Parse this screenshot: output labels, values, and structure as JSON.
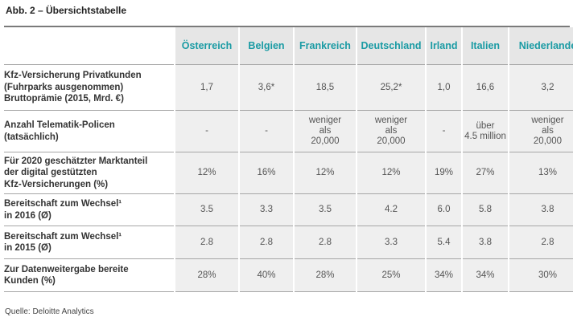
{
  "title": "Abb. 2 – Übersichtstabelle",
  "columns": [
    "Österreich",
    "Belgien",
    "Frankreich",
    "Deutschland",
    "Irland",
    "Italien",
    "Niederlande"
  ],
  "rows": [
    {
      "label": [
        "Kfz-Versicherung Privatkunden",
        "(Fuhrparks ausgenommen)",
        "Bruttoprämie (2015, Mrd. €)"
      ],
      "values": [
        [
          "1,7"
        ],
        [
          "3,6*"
        ],
        [
          "18,5"
        ],
        [
          "25,2*"
        ],
        [
          "1,0"
        ],
        [
          "16,6"
        ],
        [
          "3,2"
        ]
      ]
    },
    {
      "label": [
        "Anzahl Telematik-Policen",
        "(tatsächlich)"
      ],
      "values": [
        [
          "-"
        ],
        [
          "-"
        ],
        [
          "weniger",
          "als",
          "20,000"
        ],
        [
          "weniger",
          "als",
          "20,000"
        ],
        [
          "-"
        ],
        [
          "über",
          "4.5 million"
        ],
        [
          "weniger",
          "als",
          "20,000"
        ]
      ]
    },
    {
      "label": [
        "Für 2020 geschätzter Marktanteil",
        "der digital gestützten",
        "Kfz-Versicherungen (%)"
      ],
      "values": [
        [
          "12%"
        ],
        [
          "16%"
        ],
        [
          "12%"
        ],
        [
          "12%"
        ],
        [
          "19%"
        ],
        [
          "27%"
        ],
        [
          "13%"
        ]
      ]
    },
    {
      "label": [
        "Bereitschaft zum Wechsel¹",
        "in 2016 (Ø)"
      ],
      "values": [
        [
          "3.5"
        ],
        [
          "3.3"
        ],
        [
          "3.5"
        ],
        [
          "4.2"
        ],
        [
          "6.0"
        ],
        [
          "5.8"
        ],
        [
          "3.8"
        ]
      ]
    },
    {
      "label": [
        "Bereitschaft zum Wechsel¹",
        "in 2015 (Ø)"
      ],
      "values": [
        [
          "2.8"
        ],
        [
          "2.8"
        ],
        [
          "2.8"
        ],
        [
          "3.3"
        ],
        [
          "5.4"
        ],
        [
          "3.8"
        ],
        [
          "2.8"
        ]
      ]
    },
    {
      "label": [
        "Zur Datenweitergabe bereite",
        "Kunden (%)"
      ],
      "values": [
        [
          "28%"
        ],
        [
          "40%"
        ],
        [
          "28%"
        ],
        [
          "25%"
        ],
        [
          "34%"
        ],
        [
          "34%"
        ],
        [
          "30%"
        ]
      ]
    }
  ],
  "source": "Quelle: Deloitte Analytics"
}
